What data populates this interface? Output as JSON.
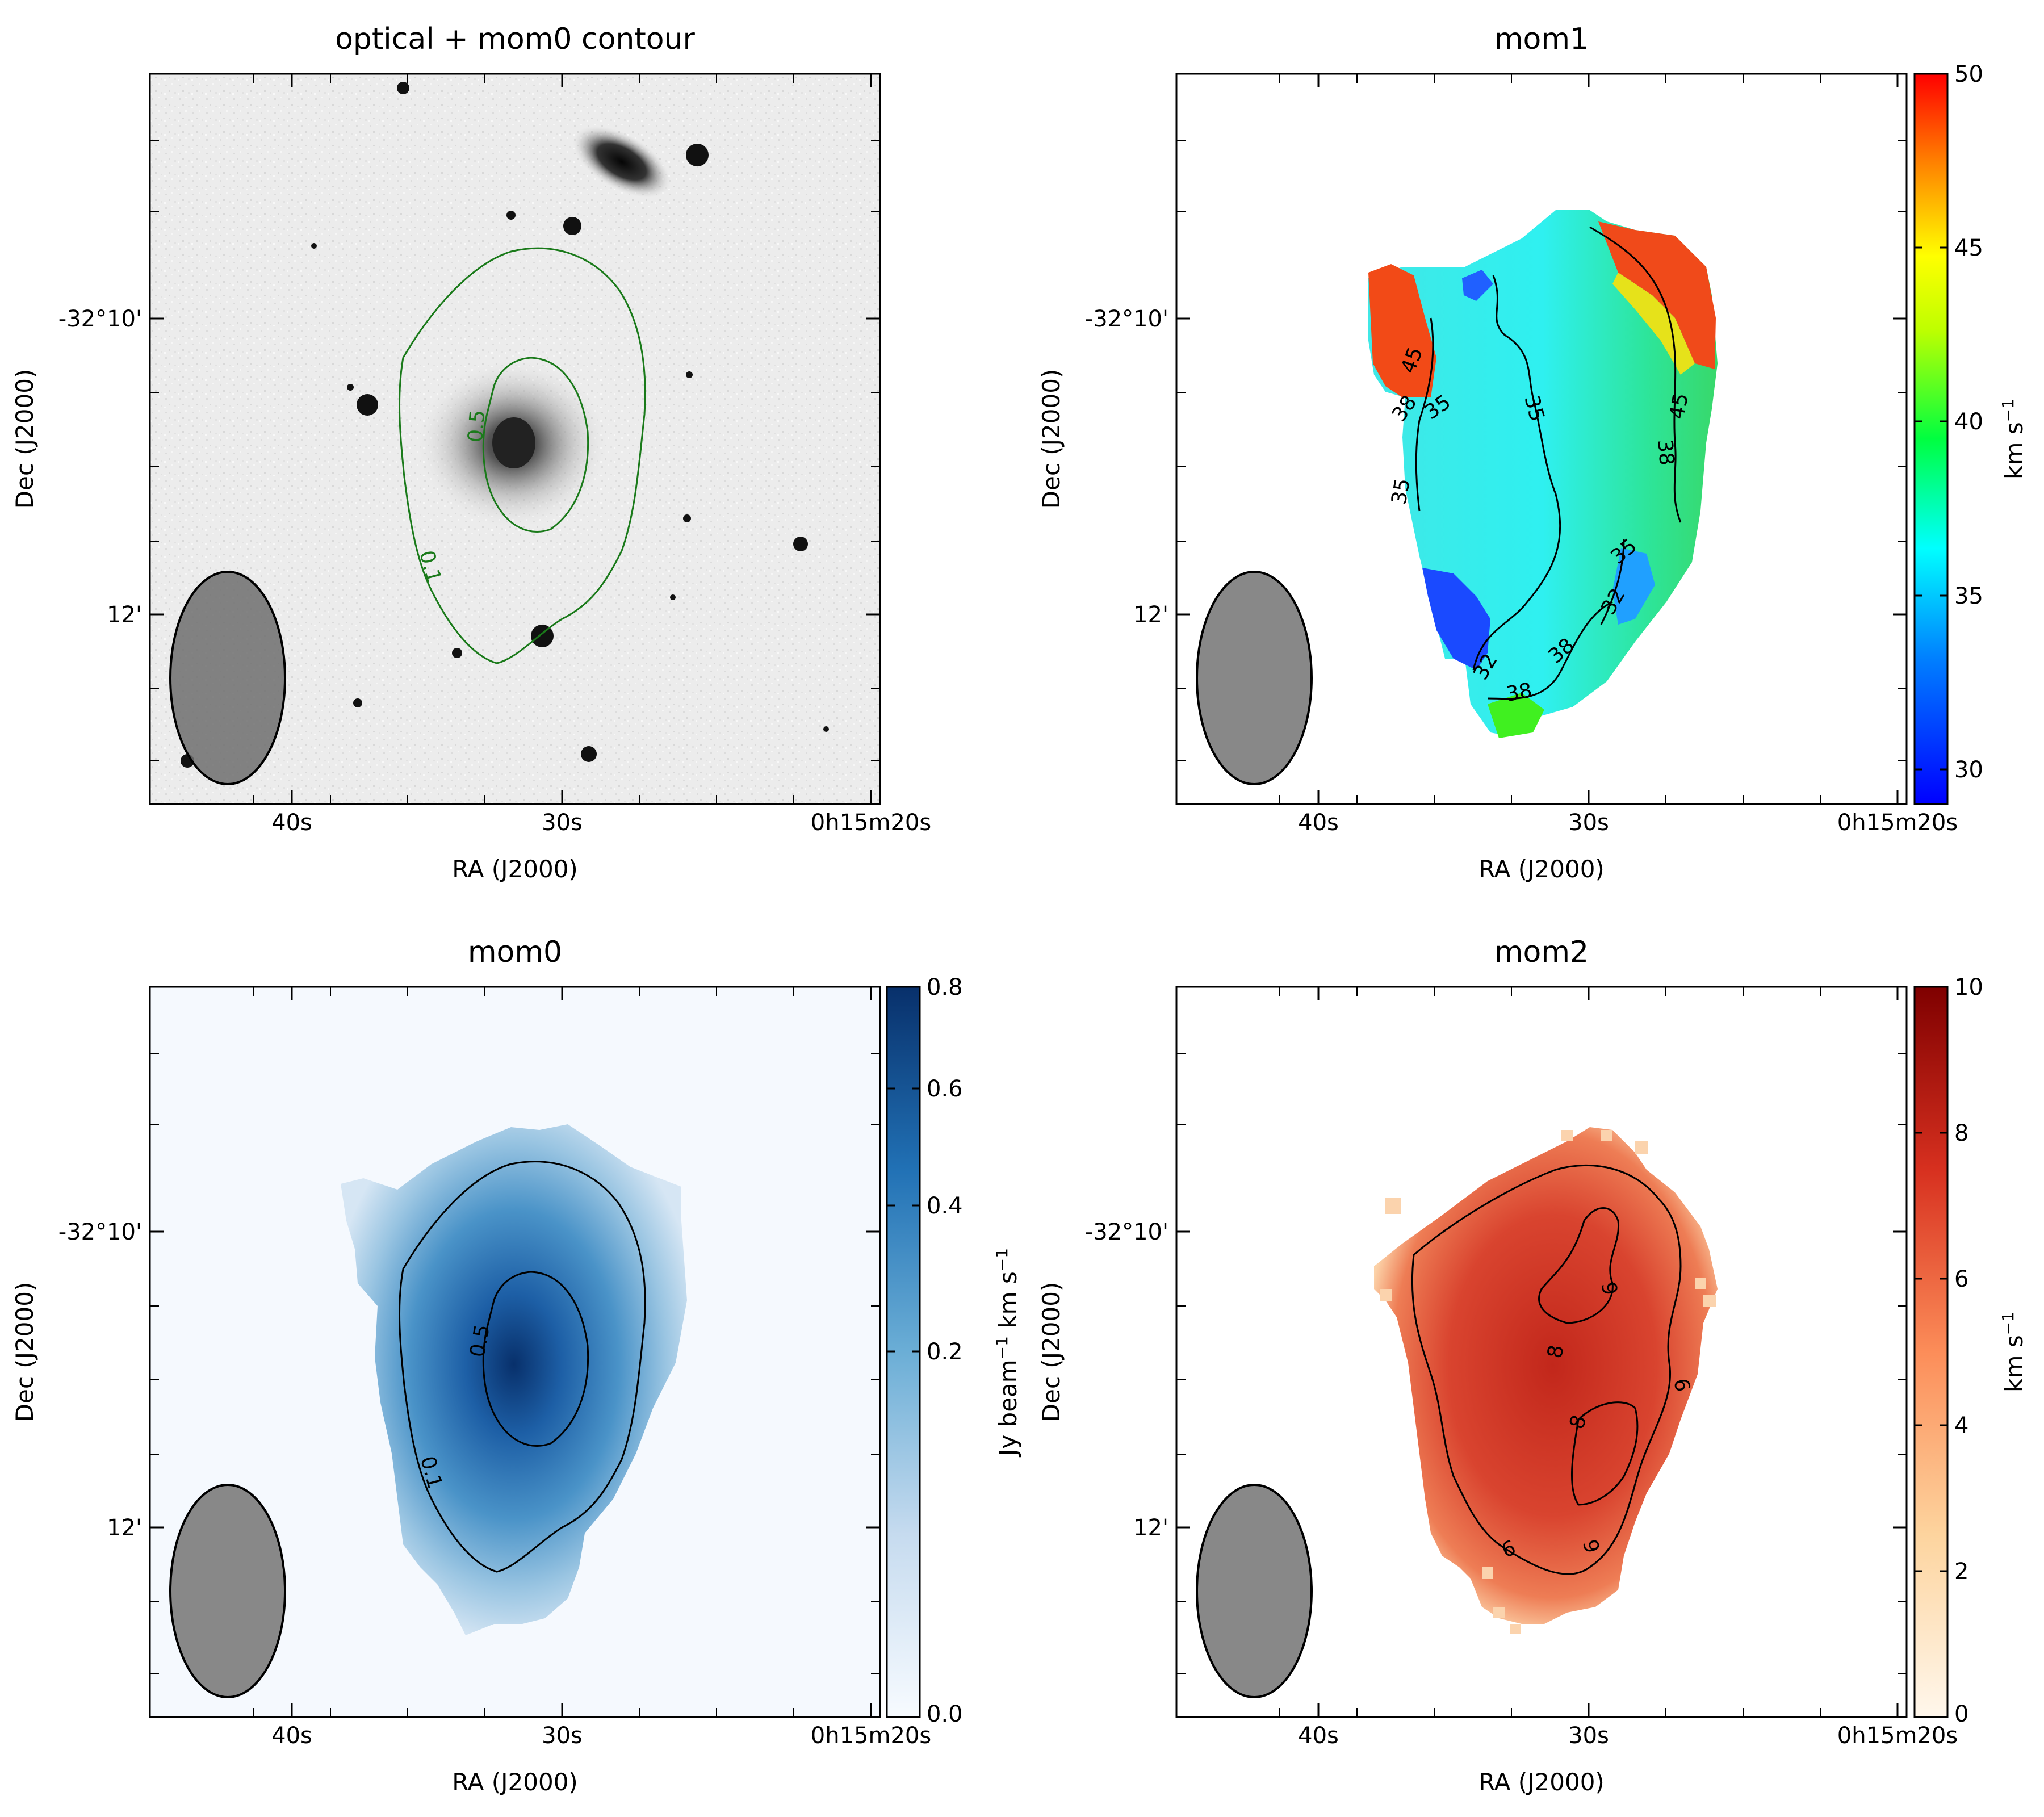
{
  "colors": {
    "optical_contour": "#1a7a1a",
    "contour": "#000000",
    "beam_fill": "#888888",
    "mom0_background": "#f5f9fe"
  },
  "chart_data": [
    {
      "type": "heatmap",
      "title": "optical + mom0 contour",
      "xlabel": "RA (J2000)",
      "ylabel": "Dec (J2000)",
      "x_ticks": [
        "40s",
        "30s",
        "0h15m20s"
      ],
      "y_ticks": [
        "-32°10'",
        "12'"
      ],
      "colormap": "gray_r",
      "contour_color": "#1a7a1a",
      "contour_labels": [
        "0.1",
        "0.5"
      ],
      "beam": true
    },
    {
      "type": "heatmap",
      "title": "mom1",
      "xlabel": "RA (J2000)",
      "ylabel": "Dec (J2000)",
      "x_ticks": [
        "40s",
        "30s",
        "0h15m20s"
      ],
      "y_ticks": [
        "-32°10'",
        "12'"
      ],
      "colormap": "jet",
      "colorbar": {
        "label": "km s",
        "label_sup": "−1",
        "range": [
          29,
          50
        ],
        "ticks": [
          "30",
          "35",
          "40",
          "45",
          "50"
        ]
      },
      "contour_labels": [
        "45",
        "35",
        "38",
        "35",
        "35",
        "38",
        "45",
        "35",
        "32",
        "38",
        "32",
        "38"
      ],
      "beam": true
    },
    {
      "type": "heatmap",
      "title": "mom0",
      "xlabel": "RA (J2000)",
      "ylabel": "Dec (J2000)",
      "x_ticks": [
        "40s",
        "30s",
        "0h15m20s"
      ],
      "y_ticks": [
        "-32°10'",
        "12'"
      ],
      "colormap": "Blues",
      "colorbar": {
        "label_a": "Jy beam",
        "label_b": " km s",
        "label_sup": "−1",
        "range": [
          0,
          0.8
        ],
        "ticks": [
          "0.0",
          "0.2",
          "0.4",
          "0.6",
          "0.8"
        ]
      },
      "contour_labels": [
        "0.5",
        "0.1"
      ],
      "beam": true
    },
    {
      "type": "heatmap",
      "title": "mom2",
      "xlabel": "RA (J2000)",
      "ylabel": "Dec (J2000)",
      "x_ticks": [
        "40s",
        "30s",
        "0h15m20s"
      ],
      "y_ticks": [
        "-32°10'",
        "12'"
      ],
      "colormap": "OrRd",
      "colorbar": {
        "label": "km s",
        "label_sup": "−1",
        "range": [
          0,
          10
        ],
        "ticks": [
          "0",
          "2",
          "4",
          "6",
          "8",
          "10"
        ]
      },
      "contour_labels": [
        "9",
        "8",
        "8",
        "6",
        "6",
        "9"
      ],
      "beam": true
    }
  ]
}
